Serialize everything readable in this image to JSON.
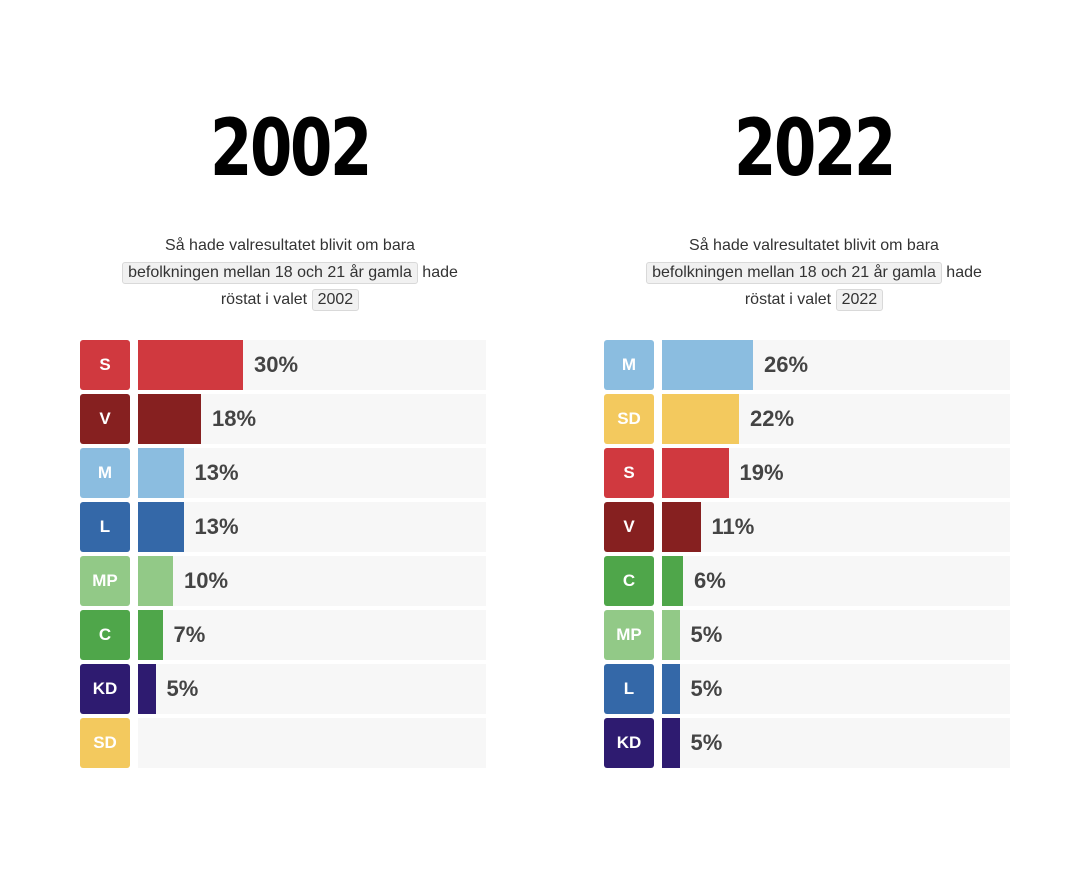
{
  "panels": [
    {
      "year": "2002",
      "subtitle": {
        "line1": "Så hade valresultatet blivit om bara",
        "group_chip": "befolkningen mellan 18 och 21 år gamla",
        "line2_suffix": "hade",
        "line3_prefix": "röstat i valet",
        "year_chip": "2002"
      }
    },
    {
      "year": "2022",
      "subtitle": {
        "line1": "Så hade valresultatet blivit om bara",
        "group_chip": "befolkningen mellan 18 och 21 år gamla",
        "line2_suffix": "hade",
        "line3_prefix": "röstat i valet",
        "year_chip": "2022"
      }
    }
  ],
  "chart_data": [
    {
      "type": "bar",
      "orientation": "horizontal",
      "title": "2002",
      "categories": [
        "S",
        "V",
        "M",
        "L",
        "MP",
        "C",
        "KD",
        "SD"
      ],
      "values": [
        30,
        18,
        13,
        13,
        10,
        7,
        5,
        null
      ],
      "labels": [
        "30%",
        "18%",
        "13%",
        "13%",
        "10%",
        "7%",
        "5%",
        ""
      ],
      "colors": [
        "#d0393f",
        "#862020",
        "#8bbde0",
        "#3468a8",
        "#92c987",
        "#4fa64a",
        "#2e1b70",
        "#f3c95e"
      ],
      "xlim": [
        0,
        100
      ]
    },
    {
      "type": "bar",
      "orientation": "horizontal",
      "title": "2022",
      "categories": [
        "M",
        "SD",
        "S",
        "V",
        "C",
        "MP",
        "L",
        "KD"
      ],
      "values": [
        26,
        22,
        19,
        11,
        6,
        5,
        5,
        5
      ],
      "labels": [
        "26%",
        "22%",
        "19%",
        "11%",
        "6%",
        "5%",
        "5%",
        "5%"
      ],
      "colors": [
        "#8bbde0",
        "#f3c95e",
        "#d0393f",
        "#862020",
        "#4fa64a",
        "#92c987",
        "#3468a8",
        "#2e1b70"
      ],
      "xlim": [
        0,
        100
      ]
    }
  ]
}
